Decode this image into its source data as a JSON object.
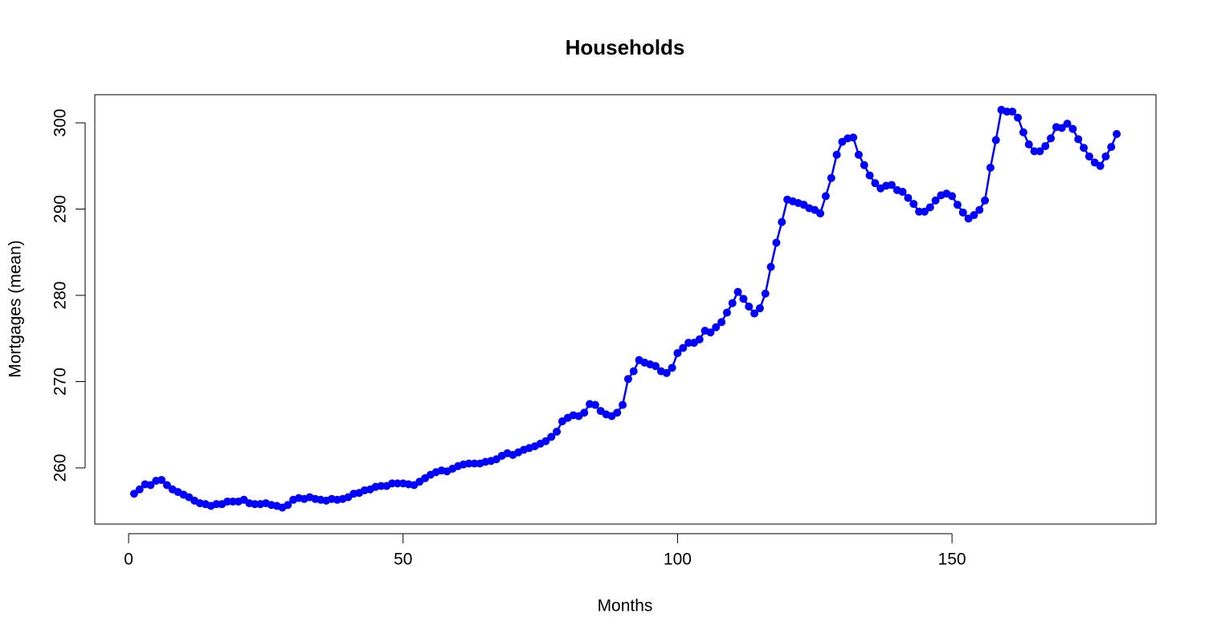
{
  "chart_data": {
    "type": "line",
    "title": "Households",
    "x_label": "Months",
    "y_label": "Mortgages (mean)",
    "x": [
      1,
      2,
      3,
      4,
      5,
      6,
      7,
      8,
      9,
      10,
      11,
      12,
      13,
      14,
      15,
      16,
      17,
      18,
      19,
      20,
      21,
      22,
      23,
      24,
      25,
      26,
      27,
      28,
      29,
      30,
      31,
      32,
      33,
      34,
      35,
      36,
      37,
      38,
      39,
      40,
      41,
      42,
      43,
      44,
      45,
      46,
      47,
      48,
      49,
      50,
      51,
      52,
      53,
      54,
      55,
      56,
      57,
      58,
      59,
      60,
      61,
      62,
      63,
      64,
      65,
      66,
      67,
      68,
      69,
      70,
      71,
      72,
      73,
      74,
      75,
      76,
      77,
      78,
      79,
      80,
      81,
      82,
      83,
      84,
      85,
      86,
      87,
      88,
      89,
      90,
      91,
      92,
      93,
      94,
      95,
      96,
      97,
      98,
      99,
      100,
      101,
      102,
      103,
      104,
      105,
      106,
      107,
      108,
      109,
      110,
      111,
      112,
      113,
      114,
      115,
      116,
      117,
      118,
      119,
      120,
      121,
      122,
      123,
      124,
      125,
      126,
      127,
      128,
      129,
      130,
      131,
      132,
      133,
      134,
      135,
      136,
      137,
      138,
      139,
      140,
      141,
      142,
      143,
      144,
      145,
      146,
      147,
      148,
      149,
      150,
      151,
      152,
      153,
      154,
      155,
      156,
      157,
      158,
      159,
      160,
      161,
      162,
      163,
      164,
      165,
      166,
      167,
      168,
      169,
      170,
      171,
      172,
      173,
      174,
      175,
      176,
      177,
      178,
      179,
      180
    ],
    "series": [
      {
        "color": "#0000ff",
        "values": [
          257.0,
          257.5,
          258.1,
          258.0,
          258.5,
          258.6,
          258.0,
          257.5,
          257.2,
          256.9,
          256.6,
          256.2,
          255.9,
          255.8,
          255.6,
          255.8,
          255.8,
          256.1,
          256.1,
          256.1,
          256.3,
          255.9,
          255.8,
          255.8,
          255.9,
          255.7,
          255.6,
          255.4,
          255.7,
          256.3,
          256.5,
          256.4,
          256.6,
          256.4,
          256.3,
          256.2,
          256.4,
          256.3,
          256.4,
          256.6,
          257.0,
          257.1,
          257.4,
          257.5,
          257.8,
          257.9,
          257.9,
          258.2,
          258.2,
          258.2,
          258.1,
          258.0,
          258.4,
          258.8,
          259.2,
          259.5,
          259.7,
          259.6,
          259.9,
          260.2,
          260.4,
          260.5,
          260.5,
          260.5,
          260.7,
          260.8,
          261.0,
          261.4,
          261.7,
          261.5,
          261.8,
          262.1,
          262.3,
          262.5,
          262.8,
          263.1,
          263.6,
          264.2,
          265.4,
          265.8,
          266.1,
          266.0,
          266.4,
          267.4,
          267.3,
          266.6,
          266.2,
          266.0,
          266.4,
          267.3,
          270.3,
          271.2,
          272.5,
          272.2,
          272.0,
          271.8,
          271.2,
          271.0,
          271.6,
          273.3,
          273.9,
          274.5,
          274.5,
          274.9,
          275.9,
          275.7,
          276.3,
          276.9,
          278.0,
          279.1,
          280.4,
          279.6,
          278.7,
          277.9,
          278.5,
          280.2,
          283.3,
          286.1,
          288.5,
          291.1,
          290.9,
          290.7,
          290.5,
          290.1,
          289.9,
          289.5,
          291.5,
          293.6,
          296.3,
          297.8,
          298.2,
          298.3,
          296.3,
          295.1,
          293.9,
          293.0,
          292.4,
          292.7,
          292.8,
          292.2,
          292.0,
          291.3,
          290.6,
          289.7,
          289.7,
          290.2,
          291.0,
          291.6,
          291.8,
          291.5,
          290.5,
          289.6,
          288.9,
          289.3,
          289.9,
          291.0,
          294.8,
          298.0,
          301.5,
          301.3,
          301.3,
          300.6,
          298.9,
          297.5,
          296.7,
          296.7,
          297.3,
          298.2,
          299.5,
          299.4,
          299.9,
          299.3,
          298.1,
          297.1,
          296.1,
          295.4,
          295.0,
          296.1,
          297.2,
          298.7
        ]
      }
    ],
    "xlim": [
      -6.16,
      187.16
    ],
    "ylim": [
      253.49,
      303.26
    ],
    "xticks": [
      0,
      50,
      100,
      150
    ],
    "yticks": [
      260,
      270,
      280,
      290,
      300
    ],
    "grid": false
  }
}
